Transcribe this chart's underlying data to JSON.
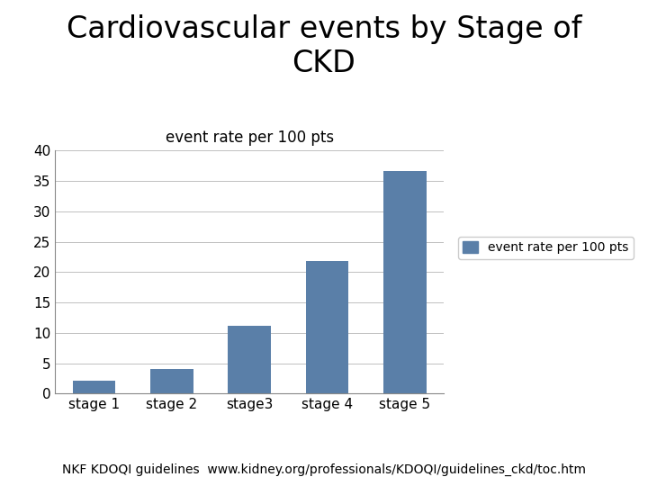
{
  "title": "Cardiovascular events by Stage of\nCKD",
  "subtitle": "event rate per 100 pts",
  "categories": [
    "stage 1",
    "stage 2",
    "stage3",
    "stage 4",
    "stage 5"
  ],
  "values": [
    2.2,
    4.0,
    11.2,
    21.8,
    36.6
  ],
  "bar_color": "#5a7fa8",
  "ylim": [
    0,
    40
  ],
  "yticks": [
    0,
    5,
    10,
    15,
    20,
    25,
    30,
    35,
    40
  ],
  "legend_label": "event rate per 100 pts",
  "footer": "NKF KDOQI guidelines  www.kidney.org/professionals/KDOQI/guidelines_ckd/toc.htm",
  "title_fontsize": 24,
  "subtitle_fontsize": 12,
  "tick_fontsize": 11,
  "legend_fontsize": 10,
  "footer_fontsize": 10,
  "background_color": "#ffffff"
}
